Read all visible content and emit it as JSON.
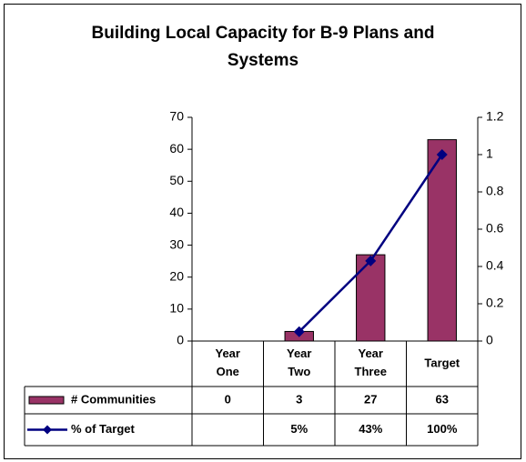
{
  "chart_data": {
    "type": "bar",
    "title": "Building Local Capacity for B-9 Plans and Systems",
    "categories": [
      "Year One",
      "Year Two",
      "Year Three",
      "Target"
    ],
    "series": [
      {
        "name": "# Communities",
        "type": "bar",
        "color": "#993366",
        "values": [
          0,
          3,
          27,
          63
        ]
      },
      {
        "name": "% of Target",
        "type": "line",
        "axis": "y2",
        "color": "#000080",
        "values": [
          null,
          0.05,
          0.43,
          1.0
        ],
        "value_labels": [
          null,
          "5%",
          "43%",
          "100%"
        ]
      }
    ],
    "ylim": [
      0,
      70
    ],
    "yticks": [
      0,
      10,
      20,
      30,
      40,
      50,
      60,
      70
    ],
    "y2lim": [
      0,
      1.2
    ],
    "y2ticks": [
      0,
      0.2,
      0.4,
      0.6,
      0.8,
      1,
      1.2
    ],
    "data_table": true
  }
}
